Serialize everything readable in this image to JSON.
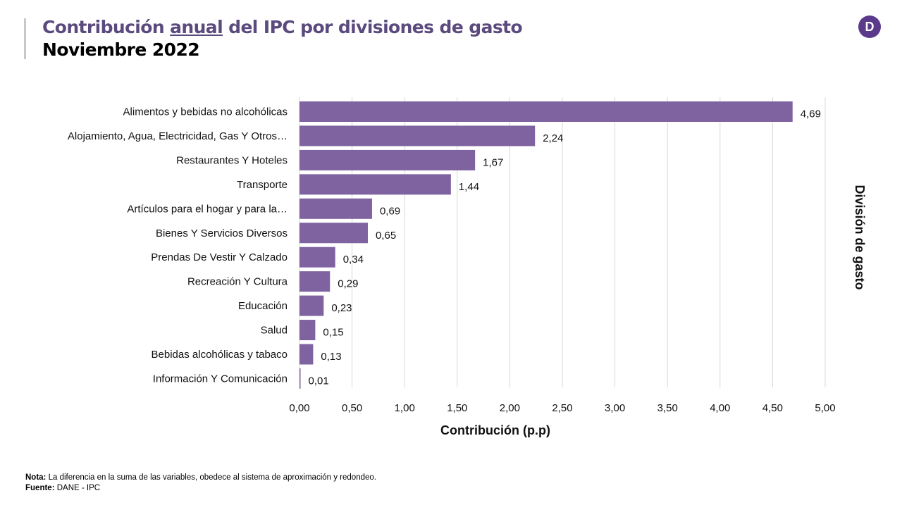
{
  "header": {
    "title_pre": "Contribución ",
    "title_underlined": "anual",
    "title_post": " del IPC por divisiones de gasto",
    "subtitle": "Noviembre 2022",
    "logo_letter": "D"
  },
  "notes": {
    "nota_label": "Nota:",
    "nota_text": " La diferencia en la suma de las variables, obedece al sistema de aproximación y redondeo.",
    "fuente_label": "Fuente:",
    "fuente_text": " DANE - IPC"
  },
  "chart_data": {
    "type": "bar",
    "orientation": "horizontal",
    "categories": [
      "Alimentos y bebidas no alcohólicas",
      "Alojamiento, Agua, Electricidad, Gas Y Otros…",
      "Restaurantes Y Hoteles",
      "Transporte",
      "Artículos para el hogar y para la…",
      "Bienes Y Servicios Diversos",
      "Prendas De Vestir Y Calzado",
      "Recreación Y Cultura",
      "Educación",
      "Salud",
      "Bebidas alcohólicas y tabaco",
      "Información Y Comunicación"
    ],
    "values": [
      4.69,
      2.24,
      1.67,
      1.44,
      0.69,
      0.65,
      0.34,
      0.29,
      0.23,
      0.15,
      0.13,
      0.01
    ],
    "value_labels": [
      "4,69",
      "2,24",
      "1,67",
      "1,44",
      "0,69",
      "0,65",
      "0,34",
      "0,29",
      "0,23",
      "0,15",
      "0,13",
      "0,01"
    ],
    "xticks": [
      0,
      0.5,
      1,
      1.5,
      2,
      2.5,
      3,
      3.5,
      4,
      4.5,
      5
    ],
    "xtick_labels": [
      "0,00",
      "0,50",
      "1,00",
      "1,50",
      "2,00",
      "2,50",
      "3,00",
      "3,50",
      "4,00",
      "4,50",
      "5,00"
    ],
    "xlim": [
      0,
      5
    ],
    "xlabel": "Contribución (p.p)",
    "ylabel": "División de gasto",
    "grid": true,
    "bar_color": "#7f63a0",
    "title_color": "#5b4a7e"
  }
}
